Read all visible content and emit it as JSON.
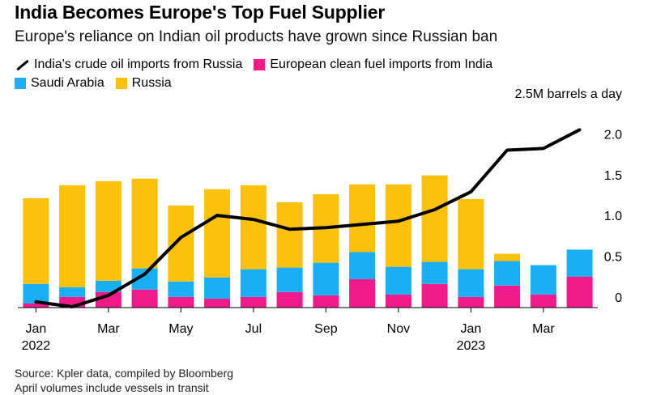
{
  "title": "India Becomes Europe's Top Fuel Supplier",
  "subtitle": "Europe's reliance on Indian oil products have grown since Russian ban",
  "legend": {
    "line": "India's crude oil imports from Russia",
    "india": "European clean fuel imports from India",
    "saudi": "Saudi Arabia",
    "russia": "Russia"
  },
  "colors": {
    "india": "#ef1b8b",
    "saudi": "#1aaef2",
    "russia": "#fcc10d",
    "line": "#000000"
  },
  "source": {
    "line1": "Source: Kpler data, compiled by Bloomberg",
    "line2": "April volumes include vessels in transit"
  },
  "chart_data": {
    "type": "bar",
    "stacked": true,
    "categories": [
      "Jan 2022",
      "Feb 2022",
      "Mar 2022",
      "Apr 2022",
      "May 2022",
      "Jun 2022",
      "Jul 2022",
      "Aug 2022",
      "Sep 2022",
      "Oct 2022",
      "Nov 2022",
      "Dec 2022",
      "Jan 2023",
      "Feb 2023",
      "Mar 2023",
      "Apr 2023"
    ],
    "x_tick_labels": [
      {
        "index": 0,
        "label": "Jan",
        "year": "2022"
      },
      {
        "index": 2,
        "label": "Mar",
        "year": ""
      },
      {
        "index": 4,
        "label": "May",
        "year": ""
      },
      {
        "index": 6,
        "label": "Jul",
        "year": ""
      },
      {
        "index": 8,
        "label": "Sep",
        "year": ""
      },
      {
        "index": 10,
        "label": "Nov",
        "year": ""
      },
      {
        "index": 12,
        "label": "Jan",
        "year": "2023"
      },
      {
        "index": 14,
        "label": "Mar",
        "year": ""
      }
    ],
    "series": [
      {
        "key": "india",
        "name": "European clean fuel imports from India",
        "values": [
          0.05,
          0.13,
          0.19,
          0.22,
          0.13,
          0.11,
          0.13,
          0.19,
          0.15,
          0.35,
          0.16,
          0.29,
          0.13,
          0.27,
          0.16,
          0.38
        ]
      },
      {
        "key": "saudi",
        "name": "Saudi Arabia",
        "values": [
          0.24,
          0.12,
          0.14,
          0.26,
          0.19,
          0.26,
          0.34,
          0.3,
          0.4,
          0.33,
          0.34,
          0.27,
          0.34,
          0.3,
          0.36,
          0.33
        ]
      },
      {
        "key": "russia",
        "name": "Russia",
        "values": [
          1.05,
          1.25,
          1.22,
          1.1,
          0.93,
          1.08,
          1.03,
          0.8,
          0.84,
          0.83,
          1.01,
          1.06,
          0.86,
          0.09,
          0.0,
          0.0
        ]
      }
    ],
    "line": {
      "name": "India's crude oil imports from Russia",
      "values": [
        0.07,
        0.01,
        0.15,
        0.41,
        0.86,
        1.13,
        1.08,
        0.96,
        0.98,
        1.02,
        1.06,
        1.2,
        1.42,
        1.93,
        1.95,
        2.18
      ]
    },
    "yticks": [
      "0",
      "0.5",
      "1.0",
      "1.5",
      "2.0",
      "2.5M barrels a day"
    ],
    "ytick_values": [
      0,
      0.5,
      1.0,
      1.5,
      2.0,
      2.5
    ],
    "ylim": [
      0,
      2.5
    ],
    "grid": false
  }
}
